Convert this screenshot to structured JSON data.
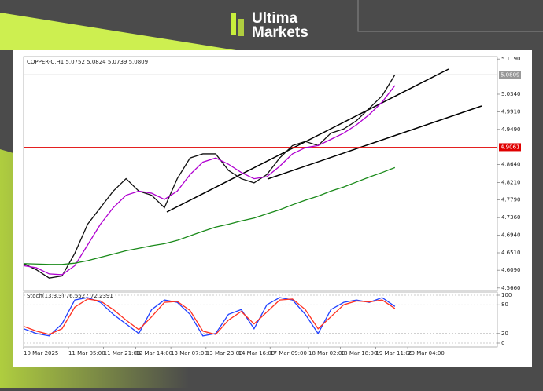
{
  "brand": {
    "line1": "Ultima",
    "line2": "Markets"
  },
  "chart_data": [
    {
      "type": "line",
      "title": "COPPER-C,H1 5.0752 5.0824 5.0739 5.0809",
      "x": [
        0,
        4,
        8,
        12,
        16,
        20,
        24,
        28,
        32,
        36,
        40,
        44,
        48,
        52,
        56,
        60,
        64,
        68,
        72,
        76,
        80,
        84,
        88,
        92,
        96,
        100,
        104,
        108,
        112,
        116
      ],
      "series": [
        {
          "color": "#111111",
          "values": [
            4.625,
            4.61,
            4.59,
            4.595,
            4.65,
            4.72,
            4.76,
            4.8,
            4.83,
            4.8,
            4.79,
            4.76,
            4.83,
            4.88,
            4.89,
            4.89,
            4.85,
            4.83,
            4.82,
            4.84,
            4.88,
            4.91,
            4.92,
            4.91,
            4.94,
            4.95,
            4.97,
            5.0,
            5.03,
            5.0809
          ]
        },
        {
          "color": "#b000d0",
          "values": [
            4.62,
            4.615,
            4.6,
            4.598,
            4.62,
            4.67,
            4.72,
            4.76,
            4.79,
            4.8,
            4.795,
            4.78,
            4.8,
            4.84,
            4.87,
            4.88,
            4.865,
            4.845,
            4.83,
            4.835,
            4.86,
            4.89,
            4.905,
            4.91,
            4.925,
            4.94,
            4.96,
            4.985,
            5.015,
            5.055
          ]
        },
        {
          "color": "#1a8a1a",
          "values": [
            4.625,
            4.624,
            4.623,
            4.623,
            4.626,
            4.632,
            4.64,
            4.648,
            4.656,
            4.662,
            4.668,
            4.673,
            4.681,
            4.692,
            4.703,
            4.713,
            4.72,
            4.728,
            4.735,
            4.745,
            4.755,
            4.767,
            4.778,
            4.788,
            4.8,
            4.81,
            4.822,
            4.834,
            4.845,
            4.857
          ]
        }
      ],
      "xlim": [
        0,
        148
      ],
      "ylim": [
        4.56,
        5.125
      ],
      "yticks": [
        {
          "value": 5.119,
          "label": "5.1190"
        },
        {
          "value": 5.034,
          "label": "5.0340"
        },
        {
          "value": 4.991,
          "label": "4.9910"
        },
        {
          "value": 4.949,
          "label": "4.9490"
        },
        {
          "value": 4.864,
          "label": "4.8640"
        },
        {
          "value": 4.821,
          "label": "4.8210"
        },
        {
          "value": 4.779,
          "label": "4.7790"
        },
        {
          "value": 4.736,
          "label": "4.7360"
        },
        {
          "value": 4.694,
          "label": "4.6940"
        },
        {
          "value": 4.651,
          "label": "4.6510"
        },
        {
          "value": 4.609,
          "label": "4.6090"
        },
        {
          "value": 4.566,
          "label": "4.5660"
        }
      ],
      "price_lines": [
        {
          "value": 5.0809,
          "color": "#999999"
        },
        {
          "value": 4.9061,
          "color": "#e00000"
        }
      ]
    },
    {
      "type": "line",
      "title": "Stoch(13,3,3) 76.5527 72.2391",
      "x": [
        0,
        4,
        8,
        12,
        16,
        20,
        24,
        28,
        32,
        36,
        40,
        44,
        48,
        52,
        56,
        60,
        64,
        68,
        72,
        76,
        80,
        84,
        88,
        92,
        96,
        100,
        104,
        108,
        112,
        116
      ],
      "series": [
        {
          "color": "#2040ff",
          "values": [
            30,
            20,
            15,
            40,
            90,
            95,
            85,
            60,
            40,
            20,
            70,
            90,
            85,
            60,
            15,
            20,
            60,
            70,
            30,
            80,
            95,
            90,
            60,
            20,
            70,
            85,
            90,
            85,
            95,
            76.5527
          ]
        },
        {
          "color": "#ff3020",
          "values": [
            35,
            25,
            18,
            30,
            75,
            92,
            88,
            70,
            48,
            28,
            55,
            85,
            87,
            68,
            25,
            18,
            48,
            66,
            40,
            65,
            90,
            92,
            70,
            30,
            55,
            80,
            88,
            86,
            90,
            72.2391
          ]
        }
      ],
      "xlim": [
        0,
        148
      ],
      "ylim": [
        0,
        100
      ],
      "yticks": [
        0,
        20,
        80,
        100
      ],
      "xticks": [
        {
          "value": 0,
          "label": "10 Mar 2025"
        },
        {
          "value": 14,
          "label": "11 Mar 05:00"
        },
        {
          "value": 25,
          "label": "11 Mar 21:00"
        },
        {
          "value": 35,
          "label": "12 Mar 14:00"
        },
        {
          "value": 46,
          "label": "13 Mar 07:00"
        },
        {
          "value": 57,
          "label": "13 Mar 23:00"
        },
        {
          "value": 67,
          "label": "14 Mar 16:00"
        },
        {
          "value": 77,
          "label": "17 Mar 09:00"
        },
        {
          "value": 89,
          "label": "18 Mar 02:00"
        },
        {
          "value": 99,
          "label": "18 Mar 18:00"
        },
        {
          "value": 110,
          "label": "19 Mar 11:00"
        },
        {
          "value": 120,
          "label": "20 Mar 04:00"
        }
      ]
    }
  ]
}
